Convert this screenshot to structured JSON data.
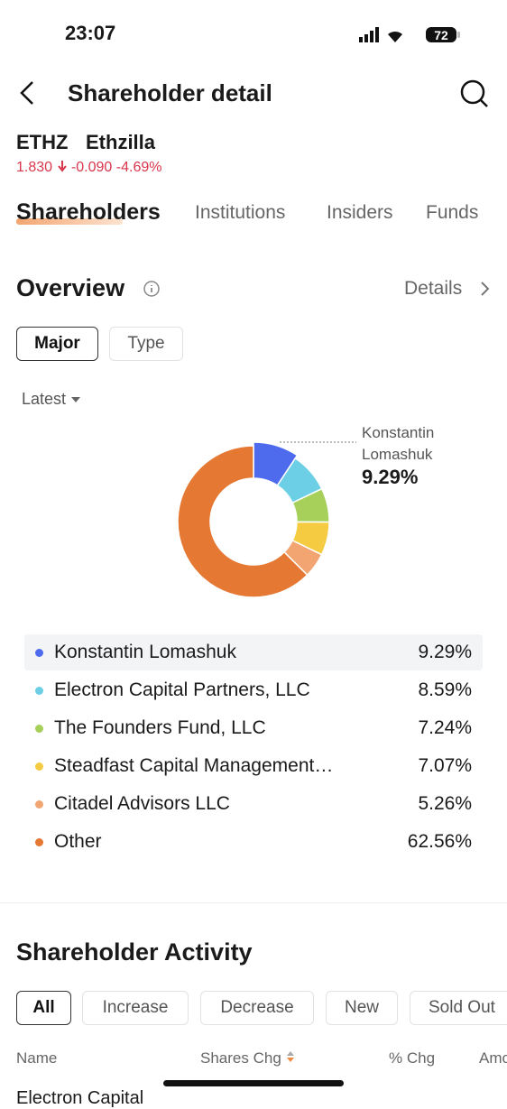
{
  "status_bar": {
    "time": "23:07",
    "battery": "72"
  },
  "header": {
    "title": "Shareholder detail"
  },
  "stock": {
    "ticker": "ETHZ",
    "name": "Ethzilla",
    "price": "1.830",
    "change": "-0.090",
    "change_pct": "-4.69%"
  },
  "tabs": [
    "Shareholders",
    "Institutions",
    "Insiders",
    "Funds"
  ],
  "overview": {
    "title": "Overview",
    "details": "Details",
    "filters": [
      "Major",
      "Type"
    ],
    "period": "Latest"
  },
  "chart_data": {
    "type": "pie",
    "donut": true,
    "categories": [
      "Konstantin Lomashuk",
      "Electron Capital Partners, LLC",
      "The Founders Fund, LLC",
      "Steadfast Capital Management…",
      "Citadel Advisors LLC",
      "Other"
    ],
    "values": [
      9.29,
      8.59,
      7.24,
      7.07,
      5.26,
      62.56
    ],
    "value_labels": [
      "9.29%",
      "8.59%",
      "7.24%",
      "7.07%",
      "5.26%",
      "62.56%"
    ],
    "colors": [
      "#4f6bed",
      "#6ccfe6",
      "#a6d05a",
      "#f5cb42",
      "#f2a571",
      "#e57934"
    ]
  },
  "activity": {
    "title": "Shareholder Activity",
    "filters": [
      "All",
      "Increase",
      "Decrease",
      "New",
      "Sold Out"
    ],
    "columns": [
      "Name",
      "Shares Chg",
      "% Chg",
      "Amo"
    ],
    "rows": [
      [
        "Electron Capital"
      ]
    ]
  }
}
